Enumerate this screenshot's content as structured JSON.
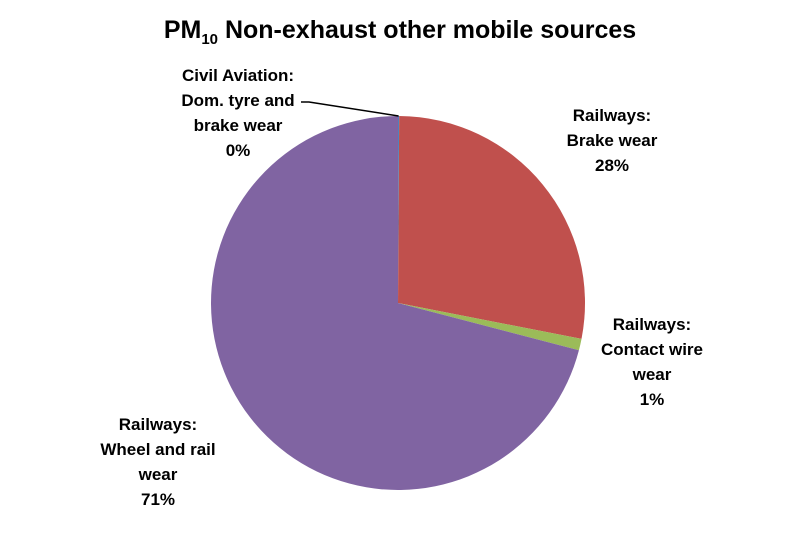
{
  "chart_data": {
    "type": "pie",
    "title": {
      "main": "PM",
      "subscript": "10",
      "rest": " Non-exhaust other mobile sources"
    },
    "slices": [
      {
        "label_lines": [
          "Civil Aviation:",
          "Dom. tyre and",
          "brake wear"
        ],
        "value": 0.1,
        "value_label": "0%",
        "color": "#4f81bd"
      },
      {
        "label_lines": [
          "Railways:",
          "Brake wear"
        ],
        "value": 28,
        "value_label": "28%",
        "color": "#c0504d"
      },
      {
        "label_lines": [
          "Railways:",
          "Contact wire",
          "wear"
        ],
        "value": 1,
        "value_label": "1%",
        "color": "#9bbb59"
      },
      {
        "label_lines": [
          "Railways:",
          "Wheel and rail",
          "wear"
        ],
        "value": 71,
        "value_label": "71%",
        "color": "#8064a2"
      }
    ],
    "start_angle_deg": 0,
    "direction": "clockwise",
    "legend": "none"
  }
}
